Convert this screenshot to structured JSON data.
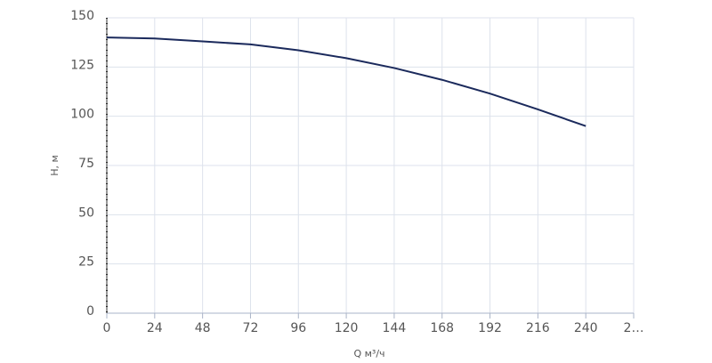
{
  "chart_data": {
    "type": "line",
    "x_label": "Q м³/ч",
    "y_label": "H, м",
    "x": [
      0,
      24,
      48,
      72,
      96,
      120,
      144,
      168,
      192,
      216,
      240
    ],
    "series": [
      {
        "name": "H",
        "color": "#1b2a5c",
        "values": [
          140,
          139.5,
          138,
          136.5,
          133.5,
          129.5,
          124.5,
          118.5,
          111.5,
          103.5,
          95
        ]
      }
    ],
    "xlim": [
      0,
      264
    ],
    "xticks": [
      0,
      24,
      48,
      72,
      96,
      120,
      144,
      168,
      192,
      216,
      240,
      {
        "value": 264,
        "label": "2…"
      }
    ],
    "ylim": [
      0,
      150
    ],
    "yticks": [
      0,
      25,
      50,
      75,
      100,
      125,
      150
    ],
    "grid": true
  }
}
